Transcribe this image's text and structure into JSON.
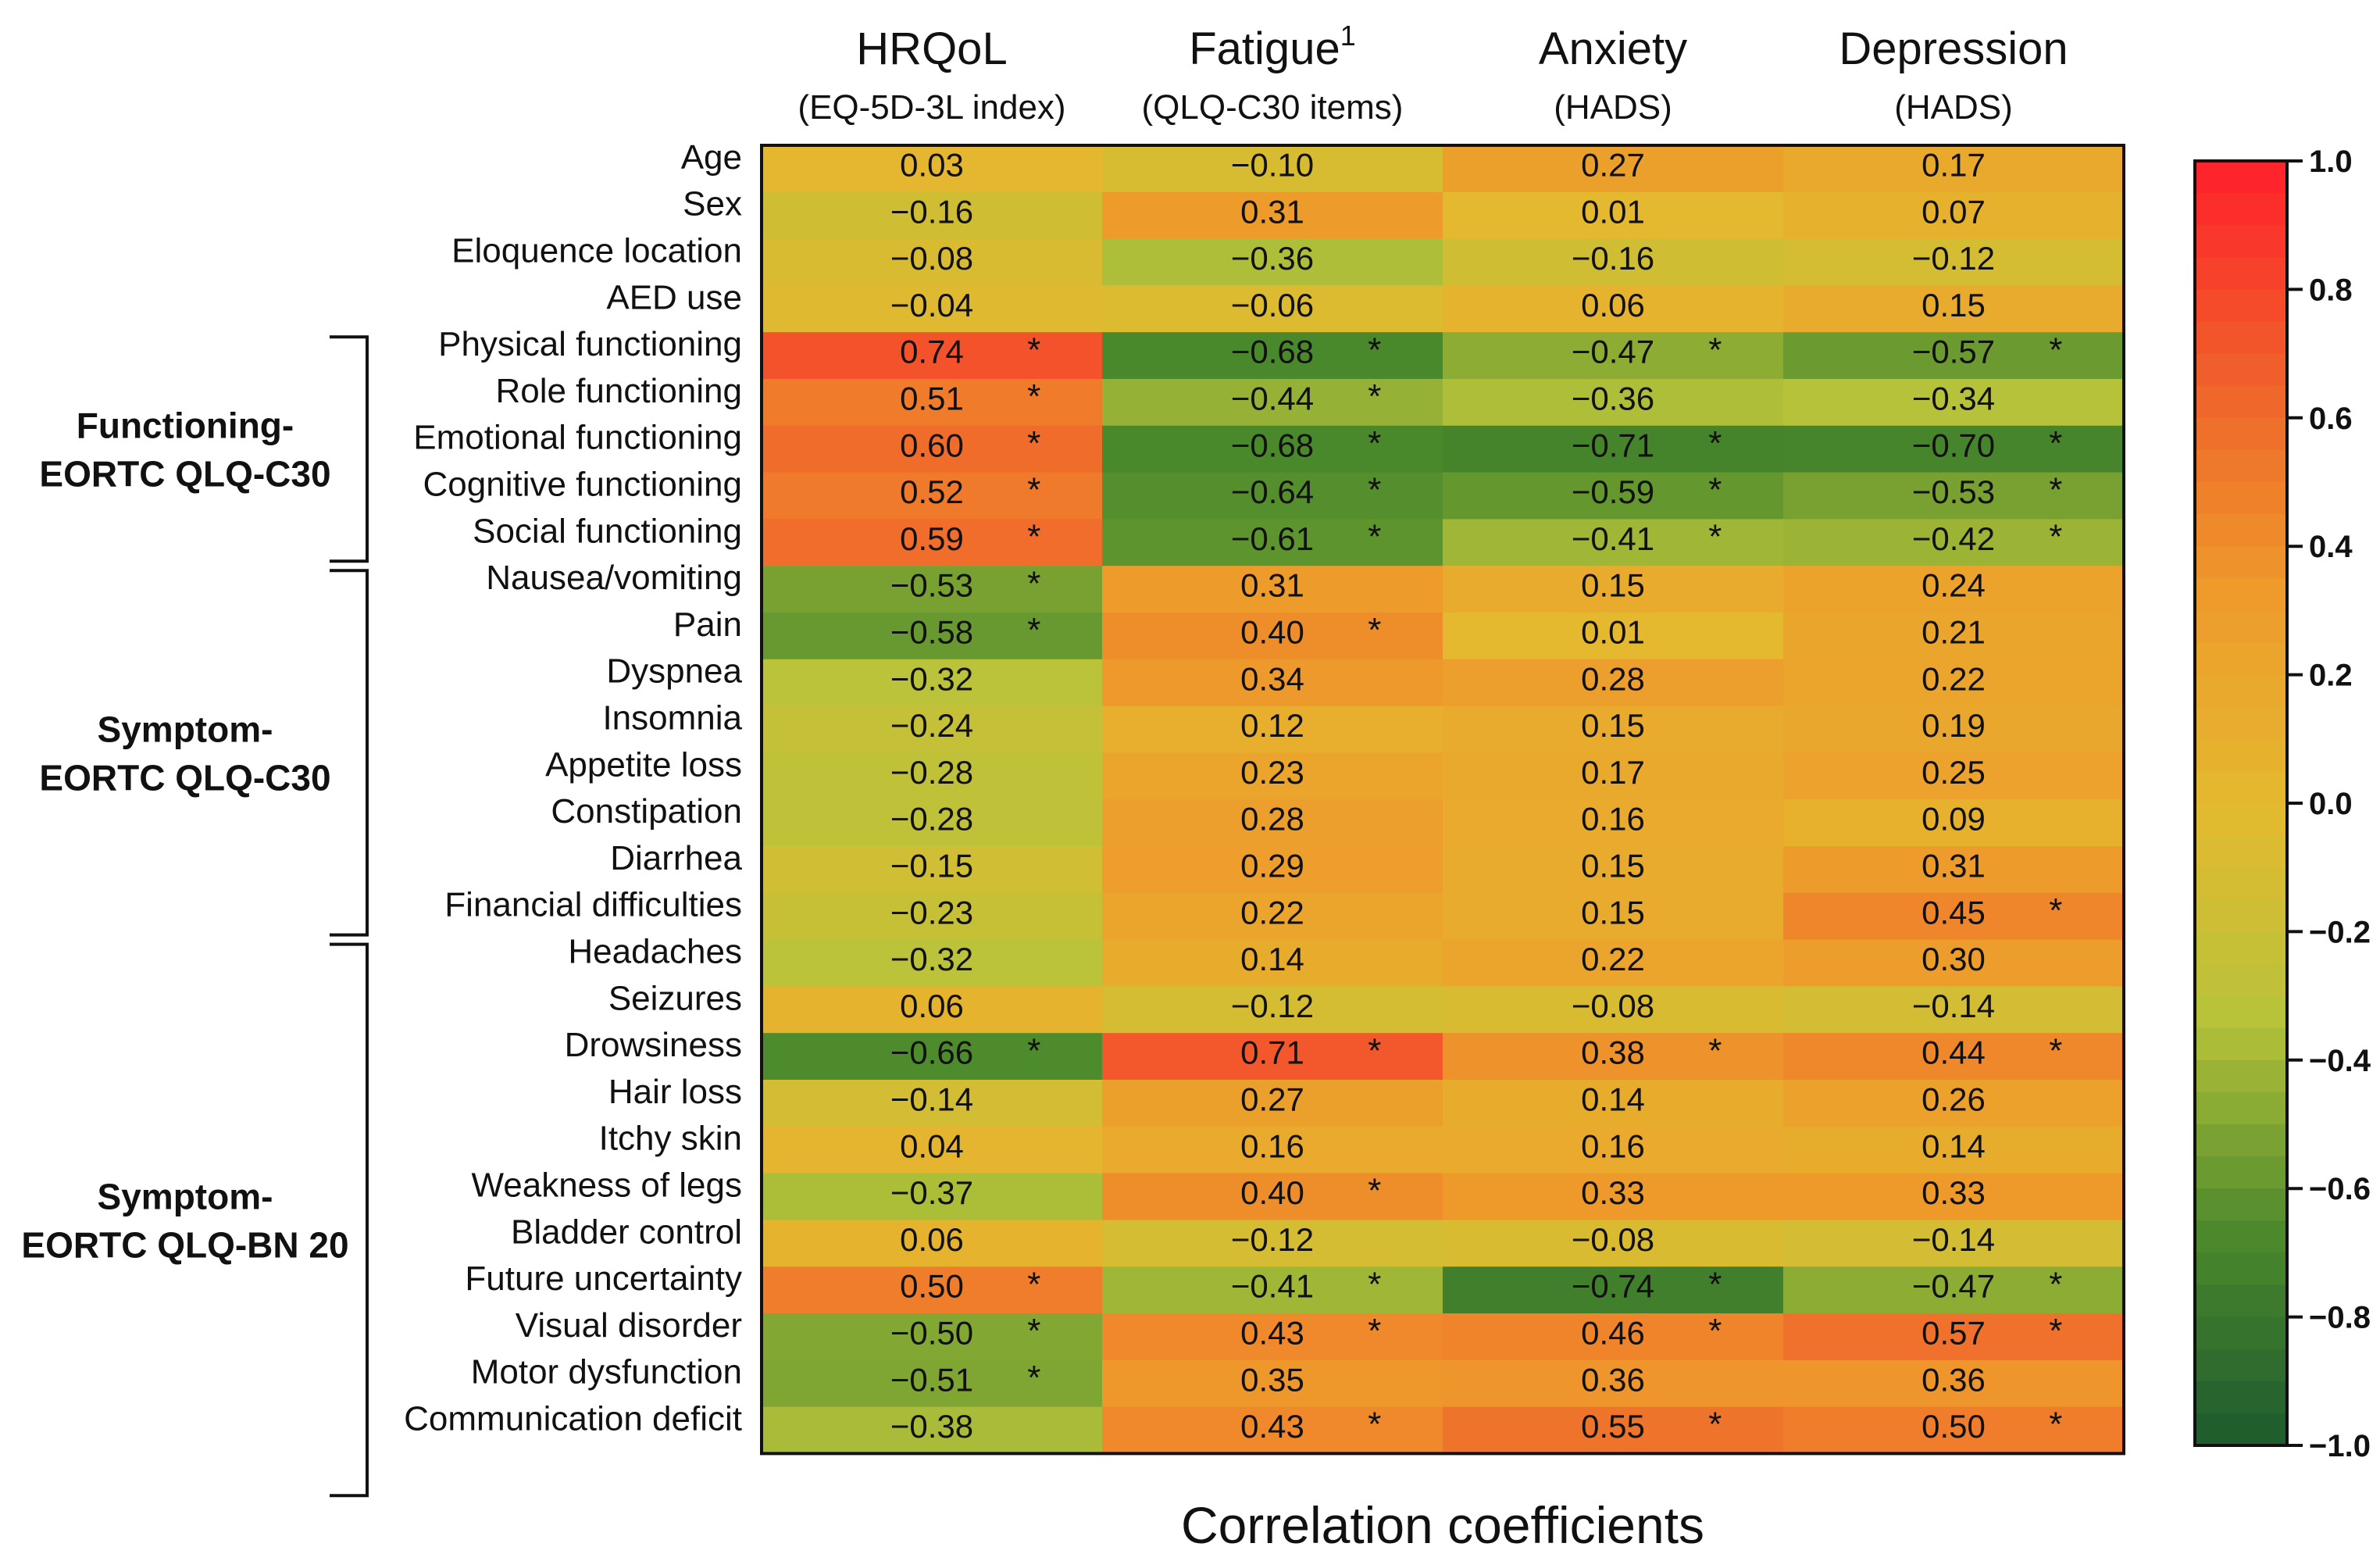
{
  "chart_data": {
    "type": "heatmap",
    "title": "Correlation coefficients",
    "columns": [
      {
        "label": "HRQoL",
        "sup": "",
        "sublabel": "(EQ-5D-3L index)"
      },
      {
        "label": "Fatigue",
        "sup": "1",
        "sublabel": "(QLQ-C30 items)"
      },
      {
        "label": "Anxiety",
        "sup": "",
        "sublabel": "(HADS)"
      },
      {
        "label": "Depression",
        "sup": "",
        "sublabel": "(HADS)"
      }
    ],
    "groups": [
      {
        "lines": [
          "Functioning-",
          "EORTC QLQ-C30"
        ],
        "first_row": 4,
        "last_row": 8
      },
      {
        "lines": [
          "Symptom-",
          "EORTC QLQ-C30"
        ],
        "first_row": 9,
        "last_row": 16
      },
      {
        "lines": [
          "Symptom-",
          "EORTC QLQ-BN 20"
        ],
        "first_row": 17,
        "last_row": 28
      }
    ],
    "rows": [
      {
        "label": "Age",
        "values": [
          0.03,
          -0.1,
          0.27,
          0.17
        ],
        "sig": [
          false,
          false,
          false,
          false
        ]
      },
      {
        "label": "Sex",
        "values": [
          -0.16,
          0.31,
          0.01,
          0.07
        ],
        "sig": [
          false,
          false,
          false,
          false
        ]
      },
      {
        "label": "Eloquence location",
        "values": [
          -0.08,
          -0.36,
          -0.16,
          -0.12
        ],
        "sig": [
          false,
          false,
          false,
          false
        ]
      },
      {
        "label": "AED use",
        "values": [
          -0.04,
          -0.06,
          0.06,
          0.15
        ],
        "sig": [
          false,
          false,
          false,
          false
        ]
      },
      {
        "label": "Physical functioning",
        "values": [
          0.74,
          -0.68,
          -0.47,
          -0.57
        ],
        "sig": [
          true,
          true,
          true,
          true
        ]
      },
      {
        "label": "Role functioning",
        "values": [
          0.51,
          -0.44,
          -0.36,
          -0.34
        ],
        "sig": [
          true,
          true,
          false,
          false
        ]
      },
      {
        "label": "Emotional functioning",
        "values": [
          0.6,
          -0.68,
          -0.71,
          -0.7
        ],
        "sig": [
          true,
          true,
          true,
          true
        ]
      },
      {
        "label": "Cognitive functioning",
        "values": [
          0.52,
          -0.64,
          -0.59,
          -0.53
        ],
        "sig": [
          true,
          true,
          true,
          true
        ]
      },
      {
        "label": "Social functioning",
        "values": [
          0.59,
          -0.61,
          -0.41,
          -0.42
        ],
        "sig": [
          true,
          true,
          true,
          true
        ]
      },
      {
        "label": "Nausea/vomiting",
        "values": [
          -0.53,
          0.31,
          0.15,
          0.24
        ],
        "sig": [
          true,
          false,
          false,
          false
        ]
      },
      {
        "label": "Pain",
        "values": [
          -0.58,
          0.4,
          0.01,
          0.21
        ],
        "sig": [
          true,
          true,
          false,
          false
        ]
      },
      {
        "label": "Dyspnea",
        "values": [
          -0.32,
          0.34,
          0.28,
          0.22
        ],
        "sig": [
          false,
          false,
          false,
          false
        ]
      },
      {
        "label": "Insomnia",
        "values": [
          -0.24,
          0.12,
          0.15,
          0.19
        ],
        "sig": [
          false,
          false,
          false,
          false
        ]
      },
      {
        "label": "Appetite loss",
        "values": [
          -0.28,
          0.23,
          0.17,
          0.25
        ],
        "sig": [
          false,
          false,
          false,
          false
        ]
      },
      {
        "label": "Constipation",
        "values": [
          -0.28,
          0.28,
          0.16,
          0.09
        ],
        "sig": [
          false,
          false,
          false,
          false
        ]
      },
      {
        "label": "Diarrhea",
        "values": [
          -0.15,
          0.29,
          0.15,
          0.31
        ],
        "sig": [
          false,
          false,
          false,
          false
        ]
      },
      {
        "label": "Financial difficulties",
        "values": [
          -0.23,
          0.22,
          0.15,
          0.45
        ],
        "sig": [
          false,
          false,
          false,
          true
        ]
      },
      {
        "label": "Headaches",
        "values": [
          -0.32,
          0.14,
          0.22,
          0.3
        ],
        "sig": [
          false,
          false,
          false,
          false
        ]
      },
      {
        "label": "Seizures",
        "values": [
          0.06,
          -0.12,
          -0.08,
          -0.14
        ],
        "sig": [
          false,
          false,
          false,
          false
        ]
      },
      {
        "label": "Drowsiness",
        "values": [
          -0.66,
          0.71,
          0.38,
          0.44
        ],
        "sig": [
          true,
          true,
          true,
          true
        ]
      },
      {
        "label": "Hair loss",
        "values": [
          -0.14,
          0.27,
          0.14,
          0.26
        ],
        "sig": [
          false,
          false,
          false,
          false
        ]
      },
      {
        "label": "Itchy skin",
        "values": [
          0.04,
          0.16,
          0.16,
          0.14
        ],
        "sig": [
          false,
          false,
          false,
          false
        ]
      },
      {
        "label": "Weakness of legs",
        "values": [
          -0.37,
          0.4,
          0.33,
          0.33
        ],
        "sig": [
          false,
          true,
          false,
          false
        ]
      },
      {
        "label": "Bladder control",
        "values": [
          0.06,
          -0.12,
          -0.08,
          -0.14
        ],
        "sig": [
          false,
          false,
          false,
          false
        ]
      },
      {
        "label": "Future uncertainty",
        "values": [
          0.5,
          -0.41,
          -0.74,
          -0.47
        ],
        "sig": [
          true,
          true,
          true,
          true
        ]
      },
      {
        "label": "Visual disorder",
        "values": [
          -0.5,
          0.43,
          0.46,
          0.57
        ],
        "sig": [
          true,
          true,
          true,
          true
        ]
      },
      {
        "label": "Motor dysfunction",
        "values": [
          -0.51,
          0.35,
          0.36,
          0.36
        ],
        "sig": [
          true,
          false,
          false,
          false
        ]
      },
      {
        "label": "Communication deficit",
        "values": [
          -0.38,
          0.43,
          0.55,
          0.5
        ],
        "sig": [
          false,
          true,
          true,
          true
        ]
      }
    ],
    "value_labels": [
      [
        "0.03",
        "−0.10",
        "0.27",
        "0.17"
      ],
      [
        "−0.16",
        "0.31",
        "0.01",
        "0.07"
      ],
      [
        "−0.08",
        "−0.36",
        "−0.16",
        "−0.12"
      ],
      [
        "−0.04",
        "−0.06",
        "0.06",
        "0.15"
      ],
      [
        "0.74",
        "−0.68",
        "−0.47",
        "−0.57"
      ],
      [
        "0.51",
        "−0.44",
        "−0.36",
        "−0.34"
      ],
      [
        "0.60",
        "−0.68",
        "−0.71",
        "−0.70"
      ],
      [
        "0.52",
        "−0.64",
        "−0.59",
        "−0.53"
      ],
      [
        "0.59",
        "−0.61",
        "−0.41",
        "−0.42"
      ],
      [
        "−0.53",
        "0.31",
        "0.15",
        "0.24"
      ],
      [
        "−0.58",
        "0.40",
        "0.01",
        "0.21"
      ],
      [
        "−0.32",
        "0.34",
        "0.28",
        "0.22"
      ],
      [
        "−0.24",
        "0.12",
        "0.15",
        "0.19"
      ],
      [
        "−0.28",
        "0.23",
        "0.17",
        "0.25"
      ],
      [
        "−0.28",
        "0.28",
        "0.16",
        "0.09"
      ],
      [
        "−0.15",
        "0.29",
        "0.15",
        "0.31"
      ],
      [
        "−0.23",
        "0.22",
        "0.15",
        "0.45"
      ],
      [
        "−0.32",
        "0.14",
        "0.22",
        "0.30"
      ],
      [
        "0.06",
        "−0.12",
        "−0.08",
        "−0.14"
      ],
      [
        "−0.66",
        "0.71",
        "0.38",
        "0.44"
      ],
      [
        "−0.14",
        "0.27",
        "0.14",
        "0.26"
      ],
      [
        "0.04",
        "0.16",
        "0.16",
        "0.14"
      ],
      [
        "−0.37",
        "0.40",
        "0.33",
        "0.33"
      ],
      [
        "0.06",
        "−0.12",
        "−0.08",
        "−0.14"
      ],
      [
        "0.50",
        "−0.41",
        "−0.74",
        "−0.47"
      ],
      [
        "−0.50",
        "0.43",
        "0.46",
        "0.57"
      ],
      [
        "−0.51",
        "0.35",
        "0.36",
        "0.36"
      ],
      [
        "−0.38",
        "0.43",
        "0.55",
        "0.50"
      ]
    ],
    "significance_marker": "*",
    "colorbar": {
      "range": [
        -1.0,
        1.0
      ],
      "ticks": [
        1.0,
        0.8,
        0.6,
        0.4,
        0.2,
        0.0,
        -0.2,
        -0.4,
        -0.6,
        -0.8,
        -1.0
      ],
      "tick_labels": [
        "1.0",
        "0.8",
        "0.6",
        "0.4",
        "0.2",
        "0.0",
        "−0.2",
        "−0.4",
        "−0.6",
        "−0.8",
        "−1.0"
      ],
      "colors": [
        "#1e5a2e",
        "#4c8a2c",
        "#b8c33a",
        "#e4b92f",
        "#ee9a2b",
        "#f0602b",
        "#ff1f2b"
      ]
    },
    "xlabel": "Correlation coefficients"
  }
}
